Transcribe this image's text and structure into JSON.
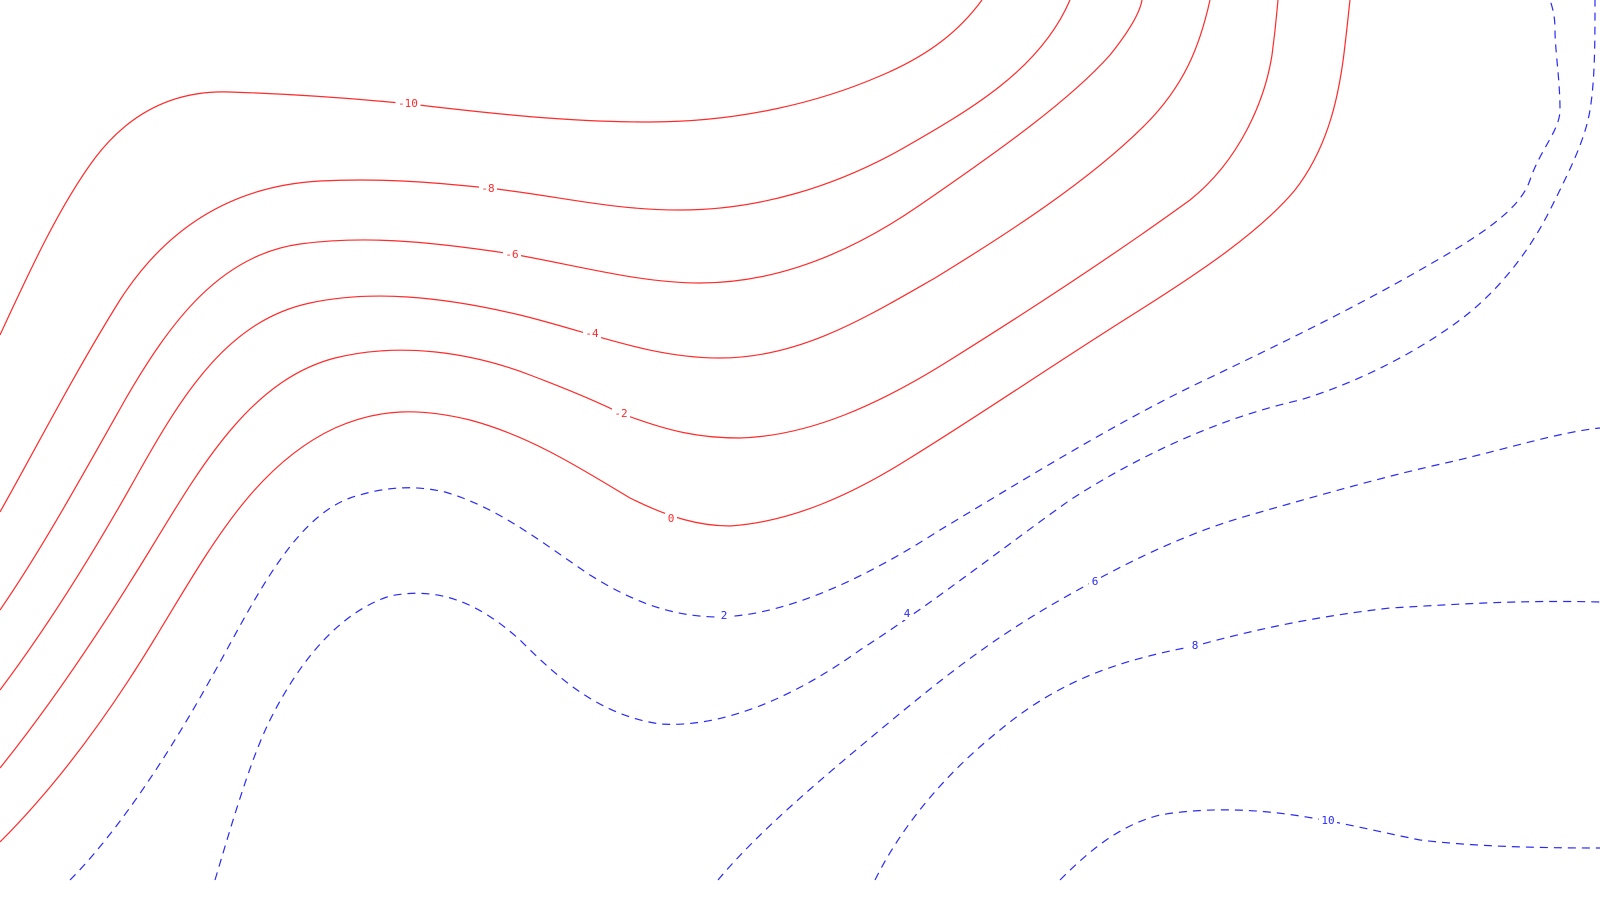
{
  "chart_data": {
    "type": "contour",
    "line_styles": {
      "negative": "solid",
      "positive": "dashed"
    },
    "colors": {
      "negative": "#ff2a2a",
      "positive": "#2a2af5",
      "background": "#ffffff"
    },
    "levels": [
      {
        "key": "n10",
        "level": -10,
        "label": "-10"
      },
      {
        "key": "n8",
        "level": -8,
        "label": "-8"
      },
      {
        "key": "n6",
        "level": -6,
        "label": "-6"
      },
      {
        "key": "n4",
        "level": -4,
        "label": "-4"
      },
      {
        "key": "n2",
        "level": -2,
        "label": "-2"
      },
      {
        "key": "z0",
        "level": 0,
        "label": "0"
      },
      {
        "key": "p2",
        "level": 2,
        "label": "2"
      },
      {
        "key": "p4",
        "level": 4,
        "label": "4"
      },
      {
        "key": "p6",
        "level": 6,
        "label": "6"
      },
      {
        "key": "p8",
        "level": 8,
        "label": "8"
      },
      {
        "key": "p10",
        "level": 10,
        "label": "10"
      }
    ]
  }
}
